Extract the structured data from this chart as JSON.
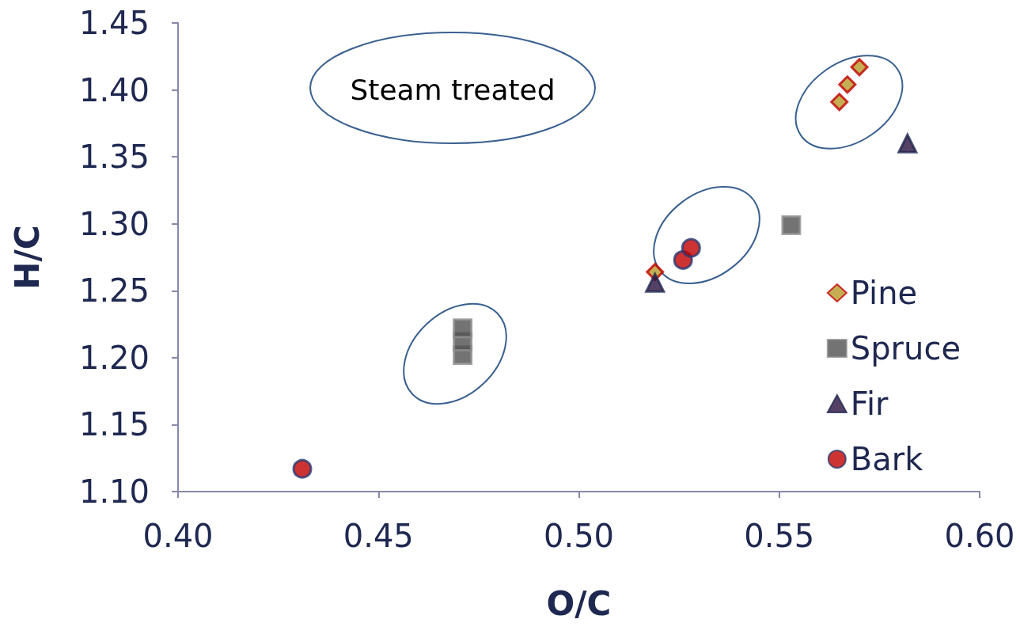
{
  "chart_data": {
    "type": "scatter",
    "xlabel": "O/C",
    "ylabel": "H/C",
    "annotations": [
      "Steam treated"
    ],
    "xlim": [
      0.4,
      0.6
    ],
    "xticks": [
      {
        "value": 0.4,
        "label": "0.40"
      },
      {
        "value": 0.45,
        "label": "0.45"
      },
      {
        "value": 0.5,
        "label": "0.50"
      },
      {
        "value": 0.55,
        "label": "0.55"
      },
      {
        "value": 0.6,
        "label": "0.60"
      }
    ],
    "ylim": [
      1.1,
      1.45
    ],
    "yticks": [
      {
        "value": 1.1,
        "label": "1.10"
      },
      {
        "value": 1.15,
        "label": "1.15"
      },
      {
        "value": 1.2,
        "label": "1.20"
      },
      {
        "value": 1.25,
        "label": "1.25"
      },
      {
        "value": 1.3,
        "label": "1.30"
      },
      {
        "value": 1.35,
        "label": "1.35"
      },
      {
        "value": 1.4,
        "label": "1.40"
      },
      {
        "value": 1.45,
        "label": "1.45"
      }
    ],
    "grid": false,
    "legend": "right",
    "series": [
      {
        "name": "Pine",
        "color": "#b89a2a",
        "marker": "diamond",
        "x": [
          0.565,
          0.567,
          0.57,
          0.519
        ],
        "values": [
          1.391,
          1.404,
          1.417,
          1.264
        ]
      },
      {
        "name": "Spruce",
        "color": "#505050",
        "marker": "square",
        "x": [
          0.471,
          0.471,
          0.471,
          0.553
        ],
        "values": [
          1.202,
          1.212,
          1.222,
          1.299
        ]
      },
      {
        "name": "Fir",
        "color": "#2a1040",
        "marker": "triangle",
        "x": [
          0.582,
          0.519
        ],
        "values": [
          1.36,
          1.256
        ]
      },
      {
        "name": "Bark",
        "color": "#c00000",
        "marker": "circle",
        "x": [
          0.431,
          0.526,
          0.528
        ],
        "values": [
          1.117,
          1.273,
          1.282
        ]
      }
    ]
  }
}
